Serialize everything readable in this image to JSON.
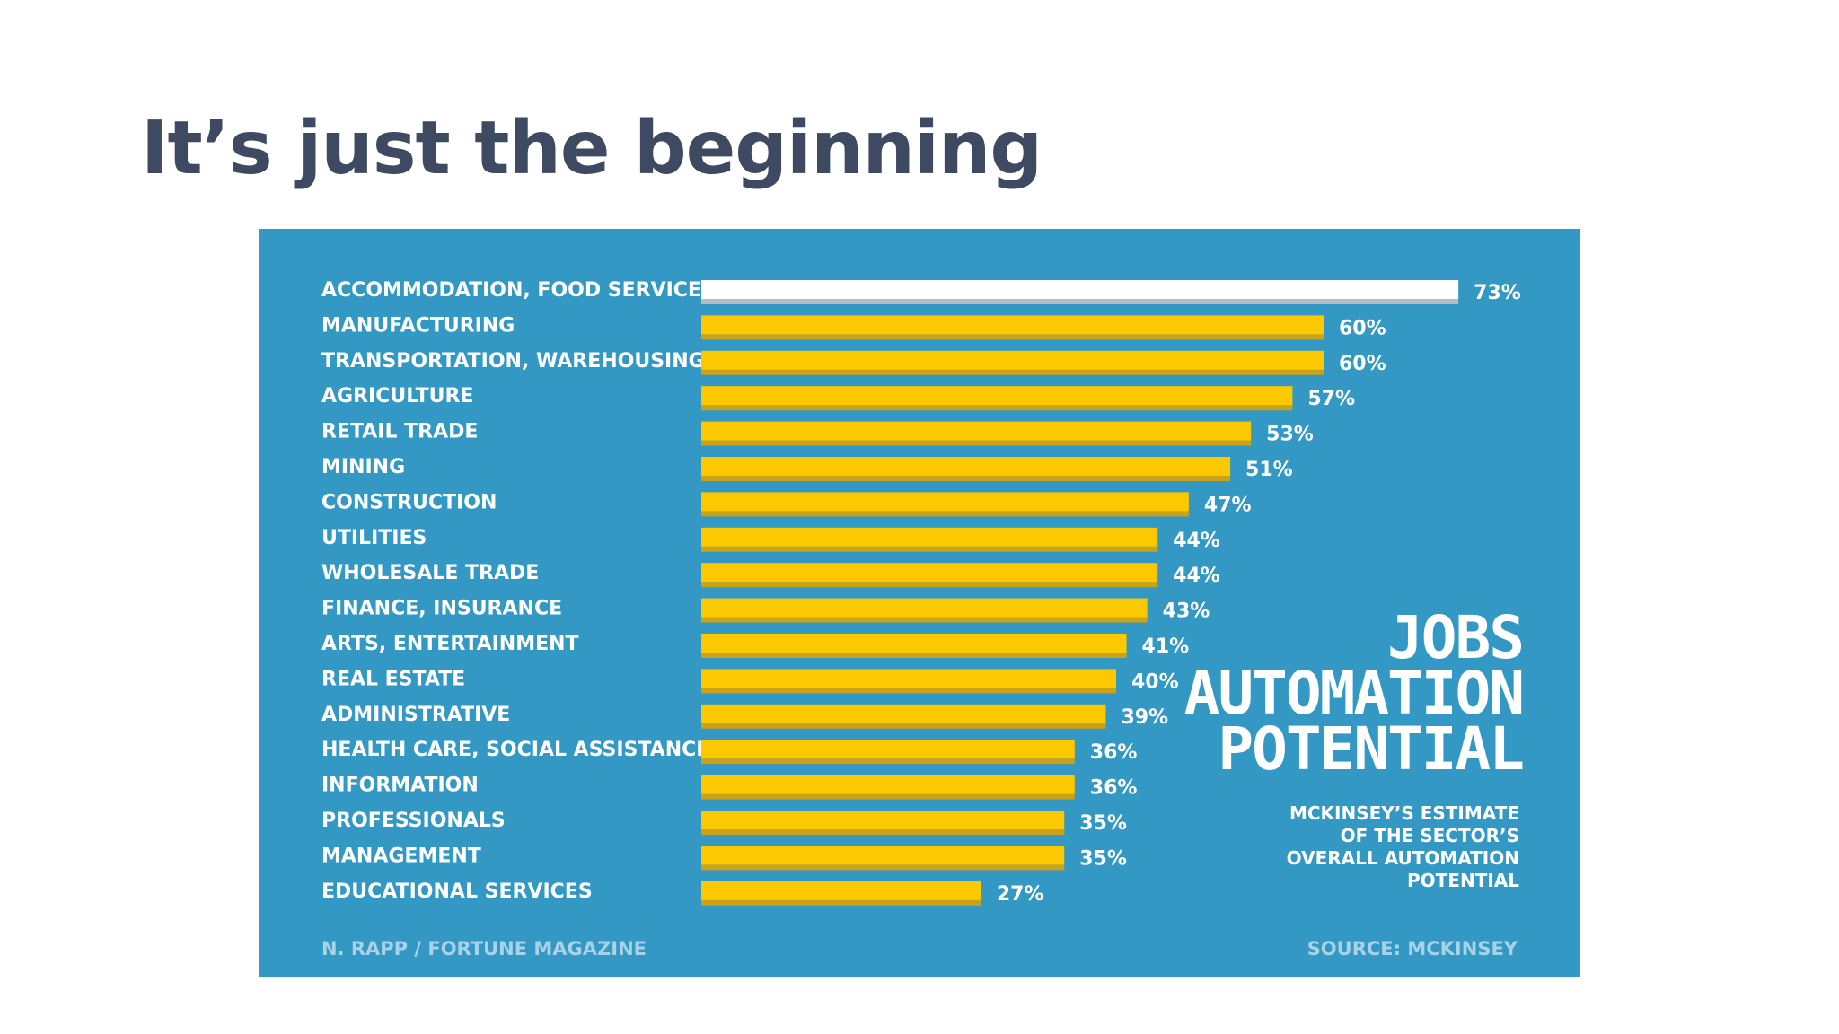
{
  "slide": {
    "title": "It’s just the beginning"
  },
  "colors": {
    "panel_bg": "#3399c4",
    "bar_fill": "#fcc900",
    "bar_shadow": "#c9a21a",
    "highlight_fill": "#ffffff",
    "highlight_shadow": "#b8bcc4",
    "title_color": "#3d4a61"
  },
  "chart_data": {
    "type": "bar",
    "orientation": "horizontal",
    "title": "JOBS AUTOMATION POTENTIAL",
    "title_lines": [
      "JOBS",
      "AUTOMATION",
      "POTENTIAL"
    ],
    "subtitle": "MCKINSEY’S ESTIMATE OF THE SECTOR’S OVERALL AUTOMATION POTENTIAL",
    "subtitle_lines": [
      "MCKINSEY’S ESTIMATE",
      "OF THE SECTOR’S",
      "OVERALL AUTOMATION",
      "POTENTIAL"
    ],
    "categories": [
      "ACCOMMODATION, FOOD SERVICES",
      "MANUFACTURING",
      "TRANSPORTATION, WAREHOUSING",
      "AGRICULTURE",
      "RETAIL TRADE",
      "MINING",
      "CONSTRUCTION",
      "UTILITIES",
      "WHOLESALE TRADE",
      "FINANCE, INSURANCE",
      "ARTS, ENTERTAINMENT",
      "REAL ESTATE",
      "ADMINISTRATIVE",
      "HEALTH CARE, SOCIAL ASSISTANCE",
      "INFORMATION",
      "PROFESSIONALS",
      "MANAGEMENT",
      "EDUCATIONAL SERVICES"
    ],
    "values": [
      73,
      60,
      60,
      57,
      53,
      51,
      47,
      44,
      44,
      43,
      41,
      40,
      39,
      36,
      36,
      35,
      35,
      27
    ],
    "value_labels": [
      "73%",
      "60%",
      "60%",
      "57%",
      "53%",
      "51%",
      "47%",
      "44%",
      "44%",
      "43%",
      "41%",
      "40%",
      "39%",
      "36%",
      "36%",
      "35%",
      "35%",
      "27%"
    ],
    "highlight_index": 0,
    "unit": "%",
    "xlabel": "",
    "ylabel": "",
    "grid": false,
    "legend": "none",
    "credit": "N. RAPP / FORTUNE MAGAZINE",
    "source": "SOURCE: MCKINSEY"
  }
}
